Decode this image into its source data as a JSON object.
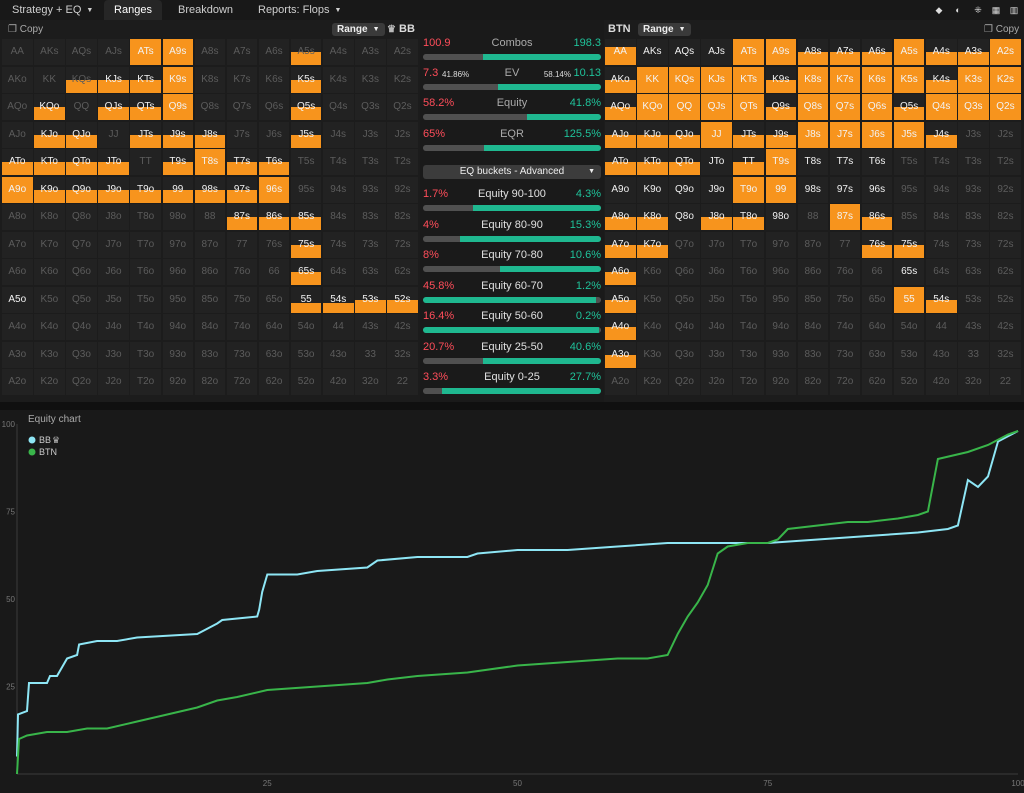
{
  "topbar": {
    "tabs": [
      {
        "label": "Strategy + EQ",
        "dropdown": true
      },
      {
        "label": "Ranges",
        "active": true
      },
      {
        "label": "Breakdown"
      },
      {
        "label": "Reports: Flops",
        "dropdown": true
      }
    ]
  },
  "bb": {
    "copy": "Copy",
    "range_label": "Range",
    "name": "BB",
    "fills": [
      [
        0,
        0,
        0,
        0,
        1,
        1,
        0,
        0,
        0,
        0.5,
        0,
        0,
        0
      ],
      [
        0,
        0,
        0.5,
        0.5,
        0.5,
        1,
        0,
        0,
        0,
        0.5,
        0,
        0,
        0
      ],
      [
        0,
        0.5,
        0,
        0.5,
        0.5,
        1,
        0,
        0,
        0,
        0.5,
        0,
        0,
        0
      ],
      [
        0,
        0.5,
        0.5,
        0,
        0.5,
        0.5,
        0.5,
        0,
        0,
        0.5,
        0,
        0,
        0
      ],
      [
        0.5,
        0.5,
        0.5,
        0.5,
        0,
        0.5,
        1,
        0.5,
        0.5,
        0,
        0,
        0,
        0
      ],
      [
        1,
        0.5,
        0.5,
        0.5,
        0.5,
        0.5,
        0.5,
        0.5,
        1,
        0,
        0,
        0,
        0
      ],
      [
        0,
        0,
        0,
        0,
        0,
        0,
        0,
        0.5,
        0.5,
        0.5,
        0,
        0,
        0
      ],
      [
        0,
        0,
        0,
        0,
        0,
        0,
        0,
        0,
        0,
        0.5,
        0,
        0,
        0
      ],
      [
        0,
        0,
        0,
        0,
        0,
        0,
        0,
        0,
        0,
        0.5,
        0,
        0,
        0
      ],
      [
        0,
        0,
        0,
        0,
        0,
        0,
        0,
        0,
        0,
        0.35,
        0.35,
        0.5,
        0.5
      ],
      [
        0,
        0,
        0,
        0,
        0,
        0,
        0,
        0,
        0,
        0,
        0,
        0,
        0
      ],
      [
        0,
        0,
        0,
        0,
        0,
        0,
        0,
        0,
        0,
        0,
        0,
        0,
        0
      ],
      [
        0,
        0,
        0,
        0,
        0,
        0,
        0,
        0,
        0,
        0,
        0,
        0,
        0
      ]
    ],
    "lit": [
      [
        0,
        0,
        0,
        0,
        1,
        1,
        0,
        0,
        0,
        0,
        0,
        0,
        0
      ],
      [
        0,
        0,
        0,
        1,
        1,
        1,
        0,
        0,
        0,
        1,
        0,
        0,
        0
      ],
      [
        0,
        1,
        0,
        1,
        1,
        1,
        0,
        0,
        0,
        1,
        0,
        0,
        0
      ],
      [
        0,
        1,
        1,
        0,
        1,
        1,
        1,
        0,
        0,
        1,
        0,
        0,
        0
      ],
      [
        1,
        1,
        1,
        1,
        0,
        1,
        1,
        1,
        1,
        0,
        0,
        0,
        0
      ],
      [
        1,
        1,
        1,
        1,
        1,
        1,
        1,
        1,
        1,
        0,
        0,
        0,
        0
      ],
      [
        0,
        0,
        0,
        0,
        0,
        0,
        0,
        1,
        1,
        1,
        0,
        0,
        0
      ],
      [
        0,
        0,
        0,
        0,
        0,
        0,
        0,
        0,
        0,
        1,
        0,
        0,
        0
      ],
      [
        0,
        0,
        0,
        0,
        0,
        0,
        0,
        0,
        0,
        1,
        0,
        0,
        0
      ],
      [
        1,
        0,
        0,
        0,
        0,
        0,
        0,
        0,
        0,
        1,
        1,
        1,
        1
      ],
      [
        0,
        0,
        0,
        0,
        0,
        0,
        0,
        0,
        0,
        0,
        0,
        0,
        0
      ],
      [
        0,
        0,
        0,
        0,
        0,
        0,
        0,
        0,
        0,
        0,
        0,
        0,
        0
      ],
      [
        0,
        0,
        0,
        0,
        0,
        0,
        0,
        0,
        0,
        0,
        0,
        0,
        0
      ]
    ]
  },
  "btn": {
    "copy": "Copy",
    "range_label": "Range",
    "name": "BTN",
    "fills": [
      [
        0.7,
        0,
        0,
        0,
        1,
        1,
        0.5,
        0.5,
        0.5,
        1,
        0.5,
        0.5,
        1
      ],
      [
        0.5,
        1,
        1,
        1,
        1,
        0.5,
        1,
        1,
        1,
        1,
        0.5,
        1,
        1
      ],
      [
        0.5,
        1,
        1,
        1,
        1,
        0.5,
        1,
        1,
        1,
        0.5,
        1,
        1,
        1
      ],
      [
        0.5,
        0.5,
        0.5,
        1,
        0.5,
        0.5,
        1,
        1,
        1,
        1,
        0.5,
        0,
        0
      ],
      [
        0.5,
        0.5,
        0.5,
        0,
        0.5,
        1,
        0,
        0,
        0,
        0,
        0,
        0,
        0
      ],
      [
        0,
        0,
        0,
        0,
        1,
        1,
        0,
        0,
        0,
        0,
        0,
        0,
        0
      ],
      [
        0.5,
        0.5,
        0,
        0.5,
        0.5,
        0,
        0,
        1,
        0.5,
        0,
        0,
        0,
        0
      ],
      [
        0.5,
        0.5,
        0,
        0,
        0,
        0,
        0,
        0,
        0.5,
        0.5,
        0,
        0,
        0
      ],
      [
        0.5,
        0,
        0,
        0,
        0,
        0,
        0,
        0,
        0,
        0,
        0,
        0,
        0
      ],
      [
        0.5,
        0,
        0,
        0,
        0,
        0,
        0,
        0,
        0,
        1,
        0.5,
        0,
        0
      ],
      [
        0.5,
        0,
        0,
        0,
        0,
        0,
        0,
        0,
        0,
        0,
        0,
        0,
        0
      ],
      [
        0.5,
        0,
        0,
        0,
        0,
        0,
        0,
        0,
        0,
        0,
        0,
        0,
        0
      ],
      [
        0,
        0,
        0,
        0,
        0,
        0,
        0,
        0,
        0,
        0,
        0,
        0,
        0
      ]
    ],
    "lit": [
      [
        1,
        1,
        1,
        1,
        1,
        1,
        1,
        1,
        1,
        1,
        1,
        1,
        1
      ],
      [
        1,
        1,
        1,
        1,
        1,
        1,
        1,
        1,
        1,
        1,
        1,
        1,
        1
      ],
      [
        1,
        1,
        1,
        1,
        1,
        1,
        1,
        1,
        1,
        1,
        1,
        1,
        1
      ],
      [
        1,
        1,
        1,
        1,
        1,
        1,
        1,
        1,
        1,
        1,
        1,
        0,
        0
      ],
      [
        1,
        1,
        1,
        1,
        1,
        1,
        1,
        1,
        1,
        0,
        0,
        0,
        0
      ],
      [
        1,
        1,
        1,
        1,
        1,
        1,
        1,
        1,
        1,
        0,
        0,
        0,
        0
      ],
      [
        1,
        1,
        1,
        1,
        1,
        1,
        0,
        1,
        1,
        0,
        0,
        0,
        0
      ],
      [
        1,
        1,
        0,
        0,
        0,
        0,
        0,
        0,
        1,
        1,
        0,
        0,
        0
      ],
      [
        1,
        0,
        0,
        0,
        0,
        0,
        0,
        0,
        0,
        1,
        0,
        0,
        0
      ],
      [
        1,
        0,
        0,
        0,
        0,
        0,
        0,
        0,
        0,
        1,
        1,
        0,
        0
      ],
      [
        1,
        0,
        0,
        0,
        0,
        0,
        0,
        0,
        0,
        0,
        0,
        0,
        0
      ],
      [
        1,
        0,
        0,
        0,
        0,
        0,
        0,
        0,
        0,
        0,
        0,
        0,
        0
      ],
      [
        0,
        0,
        0,
        0,
        0,
        0,
        0,
        0,
        0,
        0,
        0,
        0,
        0
      ]
    ]
  },
  "stats": [
    {
      "label": "Combos",
      "left": "100.9",
      "right": "198.3",
      "bb_share": 0.337
    },
    {
      "label": "EV",
      "left": "7.3",
      "left_pct": "41.86%",
      "right": "10.13",
      "right_pct": "58.14%",
      "bb_share": 0.419
    },
    {
      "label": "Equity",
      "left": "58.2%",
      "right": "41.8%",
      "bb_share": 0.582
    },
    {
      "label": "EQR",
      "left": "65%",
      "right": "125.5%",
      "bb_share": 0.34
    }
  ],
  "eq_dropdown": "EQ buckets - Advanced",
  "buckets": [
    {
      "label": "Equity 90-100",
      "left": "1.7%",
      "right": "4.3%",
      "left_val": 1.7,
      "right_val": 4.3,
      "bb_wins": false
    },
    {
      "label": "Equity 80-90",
      "left": "4%",
      "right": "15.3%",
      "left_val": 4,
      "right_val": 15.3,
      "bb_wins": false
    },
    {
      "label": "Equity 70-80",
      "left": "8%",
      "right": "10.6%",
      "left_val": 8,
      "right_val": 10.6,
      "bb_wins": false
    },
    {
      "label": "Equity 60-70",
      "left": "45.8%",
      "right": "1.2%",
      "left_val": 45.8,
      "right_val": 1.2,
      "bb_wins": true
    },
    {
      "label": "Equity 50-60",
      "left": "16.4%",
      "right": "0.2%",
      "left_val": 16.4,
      "right_val": 0.2,
      "bb_wins": true
    },
    {
      "label": "Equity 25-50",
      "left": "20.7%",
      "right": "40.6%",
      "left_val": 20.7,
      "right_val": 40.6,
      "bb_wins": false
    },
    {
      "label": "Equity 0-25",
      "left": "3.3%",
      "right": "27.7%",
      "left_val": 3.3,
      "right_val": 27.7,
      "bb_wins": false
    }
  ],
  "chart_data": {
    "type": "line",
    "title": "Equity chart",
    "xlim": [
      0,
      100
    ],
    "ylim": [
      0,
      100
    ],
    "xticks": [
      25,
      50,
      75,
      100
    ],
    "yticks": [
      25,
      50,
      75,
      100
    ],
    "legend": "top-left",
    "series": [
      {
        "name": "BB",
        "color": "#8ee6f5",
        "x": [
          0,
          0.1,
          1,
          1.2,
          3,
          3.3,
          4,
          5,
          6,
          6.2,
          8,
          10,
          12,
          18,
          20,
          20.5,
          24,
          24.2,
          24.5,
          25,
          26,
          28,
          30,
          35,
          36,
          40,
          45,
          46,
          50,
          55,
          60,
          65,
          70,
          75,
          80,
          85,
          90,
          93,
          94,
          95,
          96,
          97,
          98,
          100
        ],
        "y": [
          5,
          17,
          18,
          26,
          26,
          28,
          28,
          33,
          34,
          37,
          38,
          38,
          39,
          40,
          43,
          44,
          45,
          47,
          52,
          57,
          57,
          57,
          58,
          59,
          61,
          62,
          62,
          63,
          64,
          64,
          65,
          66,
          66,
          66,
          67,
          68,
          69,
          70,
          71,
          84,
          82,
          85,
          95,
          98
        ]
      },
      {
        "name": "BTN",
        "color": "#39b54a",
        "x": [
          0,
          0.2,
          1,
          3,
          5,
          7,
          9,
          12,
          15,
          18,
          20,
          22,
          25,
          30,
          35,
          37,
          40,
          45,
          50,
          55,
          60,
          63,
          65,
          66,
          67,
          68,
          69,
          70,
          71,
          73,
          75,
          76,
          77,
          80,
          83,
          85,
          88,
          90,
          91,
          92,
          95,
          97,
          99,
          100
        ],
        "y": [
          0,
          10,
          11,
          12,
          12,
          13,
          13,
          15,
          17,
          19,
          21,
          22,
          24,
          25,
          26,
          27,
          28,
          29,
          31,
          32,
          33,
          33,
          34,
          40,
          45,
          49,
          54,
          63,
          65,
          66,
          66,
          67,
          70,
          71,
          72,
          72,
          73,
          74,
          75,
          90,
          92,
          94,
          97,
          98
        ]
      }
    ]
  }
}
